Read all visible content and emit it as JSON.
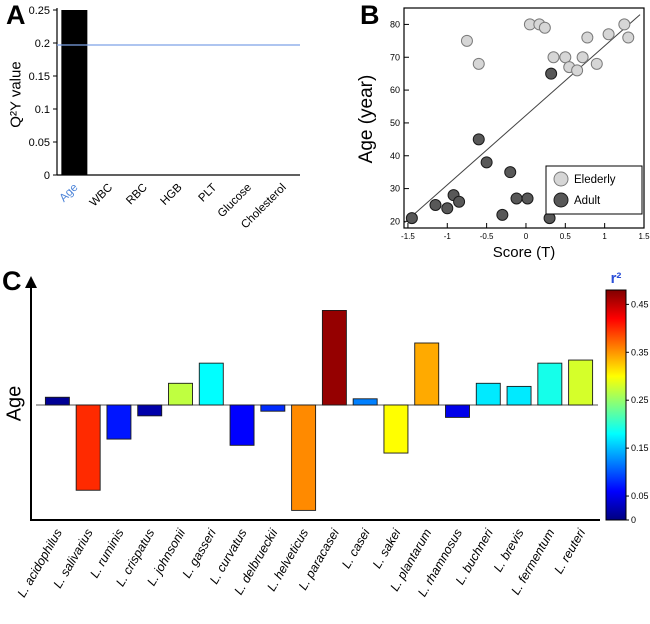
{
  "panels": {
    "a": {
      "label": "A"
    },
    "b": {
      "label": "B"
    },
    "c": {
      "label": "C"
    }
  },
  "chart_data": [
    {
      "panel": "A",
      "type": "bar",
      "ylabel": "Q²Y value",
      "categories": [
        "Age",
        "WBC",
        "RBC",
        "HGB",
        "PLT",
        "Glucose",
        "Cholesterol"
      ],
      "values": [
        0.25,
        0,
        0,
        0,
        0,
        0,
        0
      ],
      "ylim": [
        0,
        0.25
      ],
      "yticks": [
        0,
        0.05,
        0.1,
        0.15,
        0.2,
        0.25
      ],
      "bar_color": "#000000",
      "highlight_category": "Age",
      "highlight_color": "#4d84d8",
      "threshold_line": 0.197,
      "threshold_color": "#7da2e6",
      "grid": false
    },
    {
      "panel": "B",
      "type": "scatter",
      "xlabel": "Score (T)",
      "ylabel": "Age (year)",
      "xlim": [
        -1.55,
        1.5
      ],
      "ylim": [
        18,
        85
      ],
      "xticks": [
        -1.5,
        -1,
        -0.5,
        0,
        0.5,
        1,
        1.5
      ],
      "yticks": [
        20,
        30,
        40,
        50,
        60,
        70,
        80
      ],
      "fit_line": {
        "x1": -1.55,
        "y1": 19.5,
        "x2": 1.45,
        "y2": 83
      },
      "legend_position": "bottom-right",
      "series": [
        {
          "name": "Elederly",
          "fill": "#d6d6d6",
          "stroke": "#7a7a7a",
          "points": [
            [
              -0.75,
              75
            ],
            [
              -0.6,
              68
            ],
            [
              0.05,
              80
            ],
            [
              0.17,
              80
            ],
            [
              0.24,
              79
            ],
            [
              0.35,
              70
            ],
            [
              0.5,
              70
            ],
            [
              0.55,
              67
            ],
            [
              0.65,
              66
            ],
            [
              0.72,
              70
            ],
            [
              0.78,
              76
            ],
            [
              0.9,
              68
            ],
            [
              1.05,
              77
            ],
            [
              1.25,
              80
            ],
            [
              1.3,
              76
            ]
          ]
        },
        {
          "name": "Adult",
          "fill": "#585858",
          "stroke": "#1a1a1a",
          "points": [
            [
              -1.45,
              21
            ],
            [
              -1.15,
              25
            ],
            [
              -1.0,
              24
            ],
            [
              -0.92,
              28
            ],
            [
              -0.85,
              26
            ],
            [
              -0.6,
              45
            ],
            [
              -0.5,
              38
            ],
            [
              -0.3,
              22
            ],
            [
              -0.12,
              27
            ],
            [
              0.02,
              27
            ],
            [
              0.3,
              21
            ],
            [
              0.38,
              28
            ],
            [
              0.32,
              65
            ],
            [
              -0.2,
              35
            ]
          ]
        }
      ]
    },
    {
      "panel": "C",
      "type": "bar",
      "ylabel": "Age",
      "categories": [
        "L. acidophilus",
        "L. salivarius",
        "L. ruminis",
        "L. crispatus",
        "L. johnsonii",
        "L. gasseri",
        "L. curvatus",
        "L. delbrueckii",
        "L. helveticus",
        "L. paracasei",
        "L. casei",
        "L. sakei",
        "L. plantarum",
        "L. rhamnosus",
        "L. buchneri",
        "L. brevis",
        "L. fermentum",
        "L. reuteri"
      ],
      "values": [
        0.05,
        -0.55,
        -0.22,
        -0.07,
        0.14,
        0.27,
        -0.26,
        -0.04,
        -0.68,
        0.61,
        0.04,
        -0.31,
        0.4,
        -0.08,
        0.14,
        0.12,
        0.27,
        0.29
      ],
      "color_by": "r2",
      "r2": [
        0.01,
        0.4,
        0.07,
        0.02,
        0.27,
        0.18,
        0.06,
        0.08,
        0.355,
        0.47,
        0.12,
        0.3,
        0.34,
        0.05,
        0.17,
        0.17,
        0.19,
        0.28
      ],
      "colorbar": {
        "title": "r²",
        "title_color": "#2b4fd8",
        "ticks": [
          0,
          0.05,
          0.15,
          0.25,
          0.35,
          0.45
        ],
        "max": 0.48,
        "colormap": "jet"
      }
    }
  ]
}
